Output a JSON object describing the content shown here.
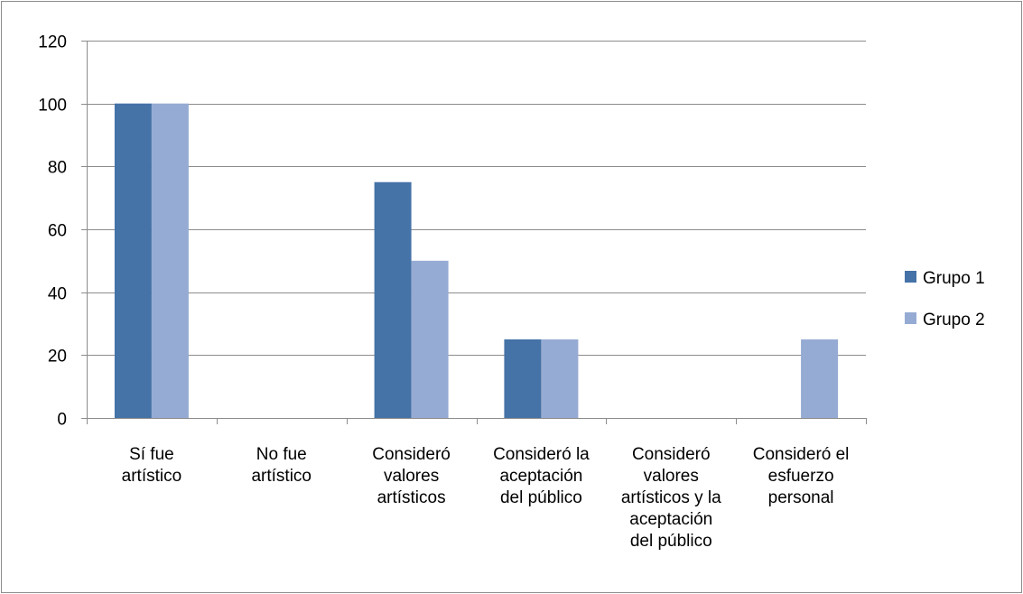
{
  "chart_data": {
    "type": "bar",
    "title": "",
    "xlabel": "",
    "ylabel": "",
    "categories": [
      [
        "Sí fue",
        "artístico"
      ],
      [
        "No fue",
        "artístico"
      ],
      [
        "Consideró",
        "valores",
        "artísticos"
      ],
      [
        "Consideró la",
        "aceptación",
        "del público"
      ],
      [
        "Consideró",
        "valores",
        "artísticos y la",
        "aceptación",
        "del público"
      ],
      [
        "Consideró el",
        "esfuerzo",
        "personal"
      ]
    ],
    "series": [
      {
        "name": "Grupo 1",
        "color": "#4572a7",
        "values": [
          100,
          0,
          75,
          25,
          0,
          0
        ]
      },
      {
        "name": "Grupo 2",
        "color": "#96abd3",
        "values": [
          100,
          0,
          50,
          25,
          0,
          25
        ]
      }
    ],
    "ylim": [
      0,
      120
    ],
    "yticks": [
      0,
      20,
      40,
      60,
      80,
      100,
      120
    ],
    "grid": true,
    "legend": "right"
  }
}
